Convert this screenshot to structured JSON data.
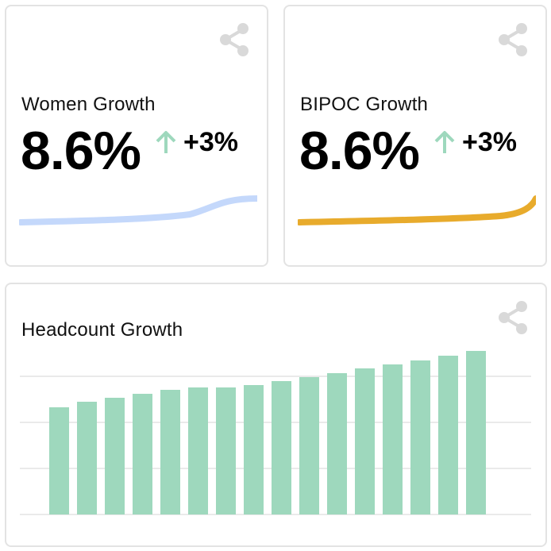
{
  "colors": {
    "women_line": "#c4d8fb",
    "bipoc_line": "#e8ab2c",
    "bar": "#9ed8bd",
    "arrow": "#9ed8bd",
    "icon": "#d9d9d9",
    "grid": "#e3e3e3"
  },
  "icons": {
    "share": "share-icon",
    "arrow": "arrow-up-icon"
  },
  "women": {
    "title": "Women Growth",
    "value": "8.6%",
    "change": "+3%"
  },
  "bipoc": {
    "title": "BIPOC Growth",
    "value": "8.6%",
    "change": "+3%"
  },
  "headcount": {
    "title": "Headcount Growth"
  },
  "chart_data": {
    "type": "bar",
    "title": "Headcount Growth",
    "values": [
      135,
      142,
      147,
      152,
      157,
      160,
      160,
      163,
      168,
      173,
      178,
      184,
      189,
      194,
      200,
      206
    ],
    "ylim": [
      0,
      232
    ],
    "gridlines": [
      58,
      116,
      174
    ],
    "grid": true
  }
}
